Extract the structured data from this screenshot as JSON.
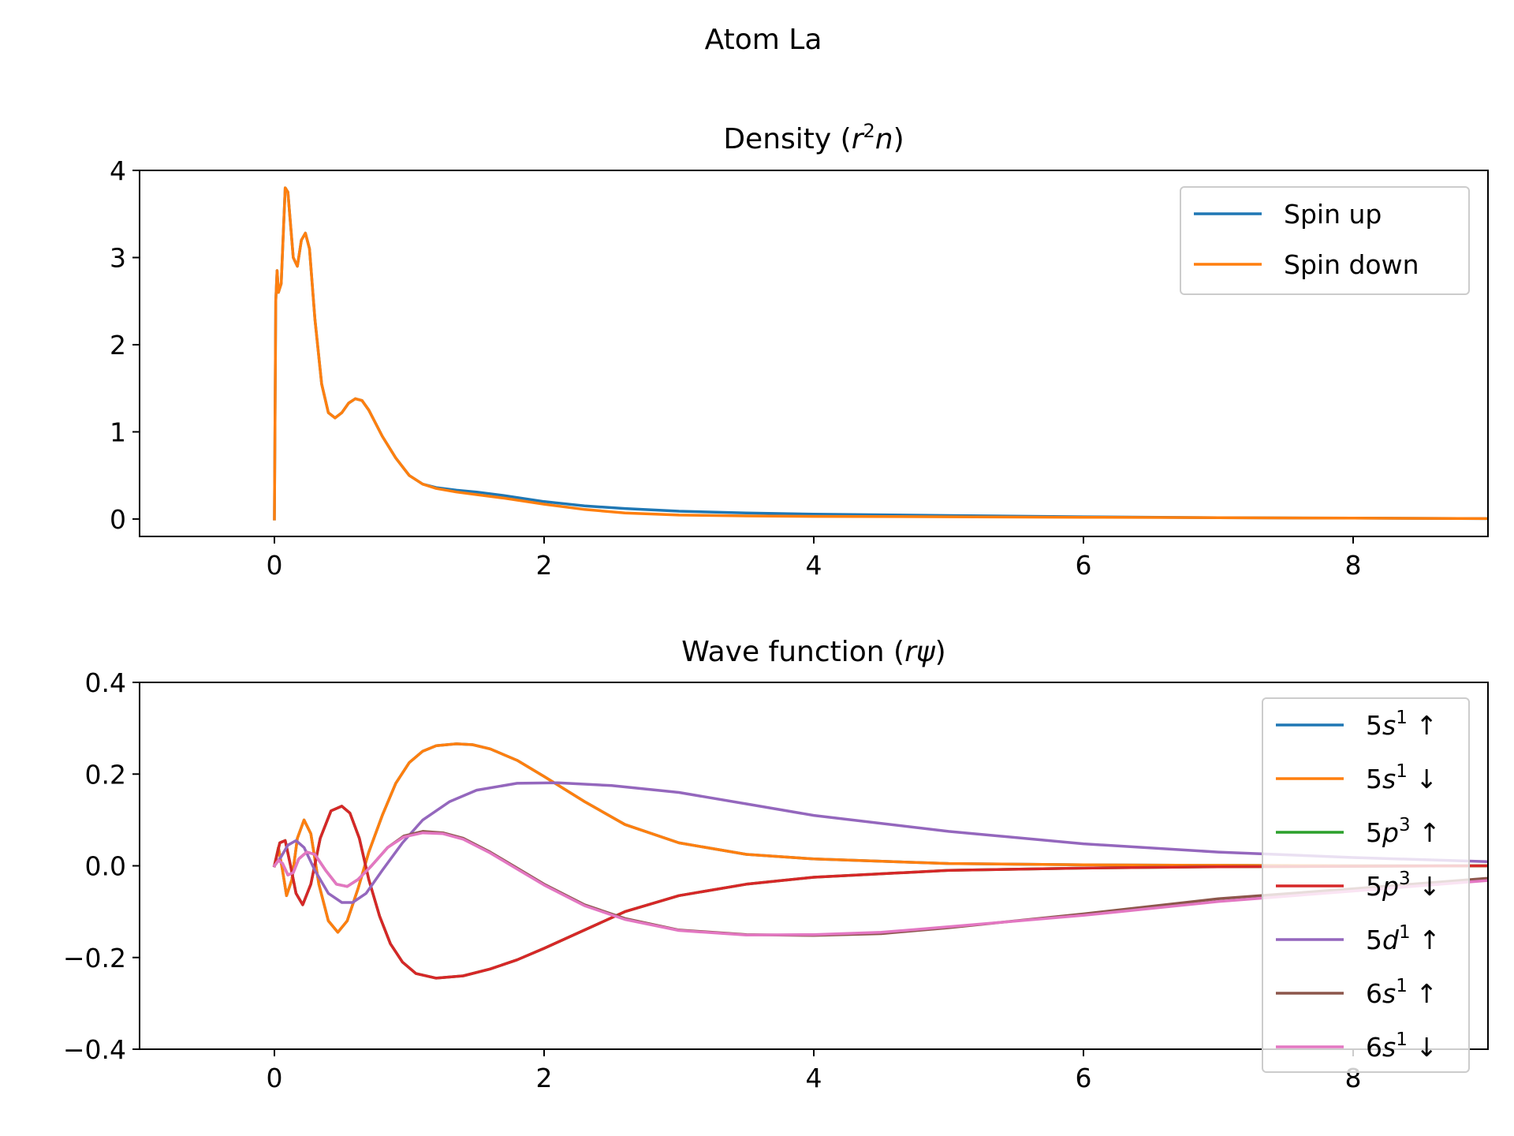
{
  "figure": {
    "suptitle": "Atom La"
  },
  "colors": {
    "C0": "#1f77b4",
    "C1": "#ff7f0e",
    "C2": "#2ca02c",
    "C3": "#d62728",
    "C4": "#9467bd",
    "C5": "#8c564b",
    "C6": "#e377c2"
  },
  "chart_data": [
    {
      "type": "line",
      "title": "Density (r²n)",
      "title_parts": {
        "prefix": "Density (",
        "var": "r",
        "sup": "2",
        "var2": "n",
        "suffix": ")"
      },
      "xlabel": "",
      "ylabel": "",
      "xlim": [
        -1.0,
        9.0
      ],
      "ylim": [
        -0.2,
        4.0
      ],
      "xticks": [
        0,
        2,
        4,
        6,
        8
      ],
      "xtick_labels": [
        "0",
        "2",
        "4",
        "6",
        "8"
      ],
      "yticks": [
        0,
        1,
        2,
        3,
        4
      ],
      "ytick_labels": [
        "0",
        "1",
        "2",
        "3",
        "4"
      ],
      "legend": "top-right",
      "grid": false,
      "series": [
        {
          "name": "Spin up",
          "color": "#1f77b4",
          "x": [
            0,
            0.01,
            0.02,
            0.03,
            0.05,
            0.08,
            0.1,
            0.14,
            0.17,
            0.2,
            0.23,
            0.26,
            0.3,
            0.35,
            0.4,
            0.45,
            0.5,
            0.55,
            0.6,
            0.65,
            0.7,
            0.8,
            0.9,
            1.0,
            1.1,
            1.2,
            1.35,
            1.5,
            1.7,
            2.0,
            2.3,
            2.6,
            3.0,
            3.5,
            4.0,
            5.0,
            6.0,
            7.0,
            8.0,
            9.0
          ],
          "y": [
            0,
            2.5,
            2.85,
            2.6,
            2.7,
            3.8,
            3.75,
            3.0,
            2.9,
            3.2,
            3.28,
            3.1,
            2.3,
            1.55,
            1.22,
            1.16,
            1.22,
            1.33,
            1.38,
            1.36,
            1.25,
            0.95,
            0.7,
            0.5,
            0.4,
            0.36,
            0.33,
            0.31,
            0.27,
            0.2,
            0.15,
            0.12,
            0.09,
            0.07,
            0.055,
            0.04,
            0.025,
            0.015,
            0.01,
            0.005
          ]
        },
        {
          "name": "Spin down",
          "color": "#ff7f0e",
          "x": [
            0,
            0.01,
            0.02,
            0.03,
            0.05,
            0.08,
            0.1,
            0.14,
            0.17,
            0.2,
            0.23,
            0.26,
            0.3,
            0.35,
            0.4,
            0.45,
            0.5,
            0.55,
            0.6,
            0.65,
            0.7,
            0.8,
            0.9,
            1.0,
            1.1,
            1.2,
            1.35,
            1.5,
            1.7,
            2.0,
            2.3,
            2.6,
            3.0,
            3.5,
            4.0,
            5.0,
            6.0,
            7.0,
            8.0,
            9.0
          ],
          "y": [
            0,
            2.5,
            2.85,
            2.6,
            2.7,
            3.8,
            3.75,
            3.0,
            2.9,
            3.2,
            3.28,
            3.1,
            2.3,
            1.55,
            1.22,
            1.16,
            1.22,
            1.33,
            1.38,
            1.36,
            1.25,
            0.95,
            0.7,
            0.5,
            0.4,
            0.35,
            0.31,
            0.28,
            0.24,
            0.17,
            0.11,
            0.07,
            0.045,
            0.035,
            0.03,
            0.025,
            0.02,
            0.015,
            0.01,
            0.005
          ]
        }
      ]
    },
    {
      "type": "line",
      "title": "Wave function (rψ)",
      "title_parts": {
        "prefix": "Wave function (",
        "var": "rψ",
        "suffix": ")"
      },
      "xlabel": "",
      "ylabel": "",
      "xlim": [
        -1.0,
        9.0
      ],
      "ylim": [
        -0.4,
        0.4
      ],
      "xticks": [
        0,
        2,
        4,
        6,
        8
      ],
      "xtick_labels": [
        "0",
        "2",
        "4",
        "6",
        "8"
      ],
      "yticks": [
        -0.4,
        -0.2,
        0.0,
        0.2,
        0.4
      ],
      "ytick_labels": [
        "−0.4",
        "−0.2",
        "0.0",
        "0.2",
        "0.4"
      ],
      "legend": "top-right",
      "grid": false,
      "series": [
        {
          "name": "5s¹ ↑",
          "label": {
            "n": "5",
            "l": "s",
            "occ": "1",
            "spin": "↑"
          },
          "color": "#1f77b4",
          "x": [
            0,
            0.03,
            0.06,
            0.09,
            0.13,
            0.17,
            0.22,
            0.27,
            0.33,
            0.4,
            0.47,
            0.54,
            0.62,
            0.7,
            0.8,
            0.9,
            1.0,
            1.1,
            1.2,
            1.35,
            1.47,
            1.6,
            1.8,
            2.0,
            2.3,
            2.6,
            3.0,
            3.5,
            4.0,
            5.0,
            6.0,
            7.0,
            8.0,
            9.0
          ],
          "y": [
            0,
            0.04,
            -0.01,
            -0.065,
            -0.03,
            0.06,
            0.1,
            0.07,
            -0.04,
            -0.12,
            -0.145,
            -0.12,
            -0.05,
            0.03,
            0.11,
            0.18,
            0.225,
            0.25,
            0.262,
            0.266,
            0.264,
            0.255,
            0.23,
            0.195,
            0.14,
            0.09,
            0.05,
            0.025,
            0.015,
            0.005,
            0.002,
            0.001,
            0.0,
            0.0
          ]
        },
        {
          "name": "5s¹ ↓",
          "label": {
            "n": "5",
            "l": "s",
            "occ": "1",
            "spin": "↓"
          },
          "color": "#ff7f0e",
          "x": [
            0,
            0.03,
            0.06,
            0.09,
            0.13,
            0.17,
            0.22,
            0.27,
            0.33,
            0.4,
            0.47,
            0.54,
            0.62,
            0.7,
            0.8,
            0.9,
            1.0,
            1.1,
            1.2,
            1.35,
            1.47,
            1.6,
            1.8,
            2.0,
            2.3,
            2.6,
            3.0,
            3.5,
            4.0,
            5.0,
            6.0,
            7.0,
            8.0,
            9.0
          ],
          "y": [
            0,
            0.04,
            -0.01,
            -0.065,
            -0.03,
            0.06,
            0.1,
            0.07,
            -0.04,
            -0.12,
            -0.145,
            -0.12,
            -0.05,
            0.03,
            0.11,
            0.18,
            0.225,
            0.25,
            0.262,
            0.266,
            0.264,
            0.255,
            0.23,
            0.195,
            0.14,
            0.09,
            0.05,
            0.025,
            0.015,
            0.005,
            0.002,
            0.001,
            0.0,
            0.0
          ]
        },
        {
          "name": "5p³ ↑",
          "label": {
            "n": "5",
            "l": "p",
            "occ": "3",
            "spin": "↑"
          },
          "color": "#2ca02c",
          "x": [
            0,
            0.04,
            0.08,
            0.12,
            0.16,
            0.21,
            0.27,
            0.34,
            0.42,
            0.5,
            0.56,
            0.63,
            0.7,
            0.78,
            0.86,
            0.95,
            1.05,
            1.2,
            1.4,
            1.6,
            1.8,
            2.0,
            2.3,
            2.6,
            3.0,
            3.5,
            4.0,
            5.0,
            6.0,
            7.0,
            8.0,
            9.0
          ],
          "y": [
            0,
            0.05,
            0.055,
            0.0,
            -0.06,
            -0.085,
            -0.04,
            0.06,
            0.12,
            0.13,
            0.115,
            0.06,
            -0.03,
            -0.11,
            -0.17,
            -0.21,
            -0.235,
            -0.245,
            -0.24,
            -0.225,
            -0.205,
            -0.18,
            -0.14,
            -0.1,
            -0.065,
            -0.04,
            -0.025,
            -0.01,
            -0.005,
            -0.002,
            -0.001,
            0.0
          ]
        },
        {
          "name": "5p³ ↓",
          "label": {
            "n": "5",
            "l": "p",
            "occ": "3",
            "spin": "↓"
          },
          "color": "#d62728",
          "x": [
            0,
            0.04,
            0.08,
            0.12,
            0.16,
            0.21,
            0.27,
            0.34,
            0.42,
            0.5,
            0.56,
            0.63,
            0.7,
            0.78,
            0.86,
            0.95,
            1.05,
            1.2,
            1.4,
            1.6,
            1.8,
            2.0,
            2.3,
            2.6,
            3.0,
            3.5,
            4.0,
            5.0,
            6.0,
            7.0,
            8.0,
            9.0
          ],
          "y": [
            0,
            0.05,
            0.055,
            0.0,
            -0.06,
            -0.085,
            -0.04,
            0.06,
            0.12,
            0.13,
            0.115,
            0.06,
            -0.03,
            -0.11,
            -0.17,
            -0.21,
            -0.235,
            -0.245,
            -0.24,
            -0.225,
            -0.205,
            -0.18,
            -0.14,
            -0.1,
            -0.065,
            -0.04,
            -0.025,
            -0.01,
            -0.005,
            -0.002,
            -0.001,
            0.0
          ]
        },
        {
          "name": "5d¹ ↑",
          "label": {
            "n": "5",
            "l": "d",
            "occ": "1",
            "spin": "↑"
          },
          "color": "#9467bd",
          "x": [
            0,
            0.05,
            0.1,
            0.16,
            0.22,
            0.3,
            0.4,
            0.5,
            0.58,
            0.68,
            0.8,
            0.95,
            1.1,
            1.3,
            1.5,
            1.8,
            2.1,
            2.5,
            3.0,
            3.5,
            4.0,
            5.0,
            6.0,
            7.0,
            8.0,
            9.0
          ],
          "y": [
            0,
            0.02,
            0.045,
            0.055,
            0.04,
            -0.01,
            -0.06,
            -0.08,
            -0.08,
            -0.06,
            -0.01,
            0.05,
            0.1,
            0.14,
            0.165,
            0.18,
            0.181,
            0.175,
            0.16,
            0.135,
            0.11,
            0.075,
            0.048,
            0.03,
            0.018,
            0.009
          ]
        },
        {
          "name": "6s¹ ↑",
          "label": {
            "n": "6",
            "l": "s",
            "occ": "1",
            "spin": "↑"
          },
          "color": "#8c564b",
          "x": [
            0,
            0.03,
            0.06,
            0.1,
            0.14,
            0.18,
            0.24,
            0.3,
            0.38,
            0.46,
            0.54,
            0.62,
            0.72,
            0.84,
            0.96,
            1.1,
            1.25,
            1.4,
            1.6,
            1.8,
            2.0,
            2.3,
            2.6,
            3.0,
            3.5,
            4.0,
            4.5,
            5.0,
            6.0,
            7.0,
            8.0,
            9.0
          ],
          "y": [
            0,
            0.012,
            0.005,
            -0.02,
            -0.015,
            0.015,
            0.03,
            0.025,
            -0.01,
            -0.04,
            -0.045,
            -0.03,
            0.0,
            0.04,
            0.065,
            0.075,
            0.072,
            0.06,
            0.03,
            -0.005,
            -0.04,
            -0.085,
            -0.115,
            -0.14,
            -0.15,
            -0.152,
            -0.148,
            -0.135,
            -0.105,
            -0.072,
            -0.05,
            -0.027
          ]
        },
        {
          "name": "6s¹ ↓",
          "label": {
            "n": "6",
            "l": "s",
            "occ": "1",
            "spin": "↓"
          },
          "color": "#e377c2",
          "x": [
            0,
            0.03,
            0.06,
            0.1,
            0.14,
            0.18,
            0.24,
            0.3,
            0.38,
            0.46,
            0.54,
            0.62,
            0.72,
            0.84,
            0.96,
            1.1,
            1.25,
            1.4,
            1.6,
            1.8,
            2.0,
            2.3,
            2.6,
            3.0,
            3.5,
            4.0,
            4.5,
            5.0,
            6.0,
            7.0,
            8.0,
            9.0
          ],
          "y": [
            0,
            0.012,
            0.005,
            -0.02,
            -0.015,
            0.015,
            0.03,
            0.025,
            -0.01,
            -0.04,
            -0.045,
            -0.03,
            0.0,
            0.04,
            0.063,
            0.072,
            0.07,
            0.058,
            0.028,
            -0.007,
            -0.042,
            -0.087,
            -0.117,
            -0.141,
            -0.151,
            -0.15,
            -0.145,
            -0.133,
            -0.108,
            -0.078,
            -0.055,
            -0.032
          ]
        }
      ]
    }
  ]
}
